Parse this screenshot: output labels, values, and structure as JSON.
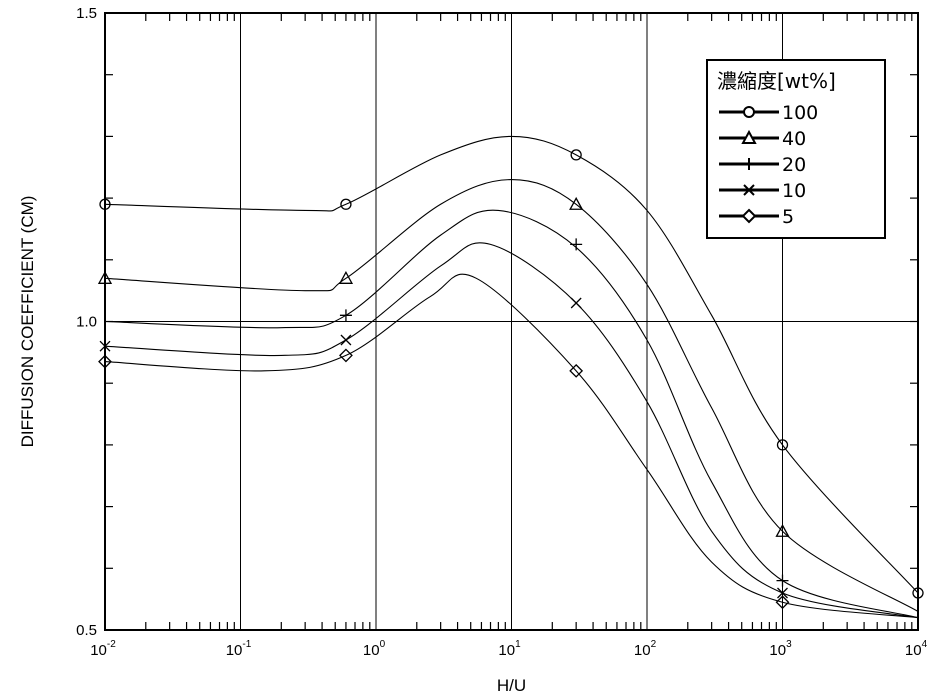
{
  "chart_data": {
    "type": "line",
    "title": "",
    "xlabel": "H/U",
    "ylabel": "DIFFUSION COEFFICIENT (CM)",
    "x_scale": "log",
    "xlim": [
      0.01,
      10000
    ],
    "ylim": [
      0.5,
      1.5
    ],
    "grid": true,
    "legend_position": "top-right",
    "legend_title": "濃縮度[wt%]",
    "x_ticks": [
      {
        "base": "10",
        "exp": "-2",
        "value": 0.01
      },
      {
        "base": "10",
        "exp": "-1",
        "value": 0.1
      },
      {
        "base": "10",
        "exp": "0",
        "value": 1
      },
      {
        "base": "10",
        "exp": "1",
        "value": 10
      },
      {
        "base": "10",
        "exp": "2",
        "value": 100
      },
      {
        "base": "10",
        "exp": "3",
        "value": 1000
      },
      {
        "base": "10",
        "exp": "4",
        "value": 10000
      }
    ],
    "y_ticks": [
      {
        "label": "0.5",
        "value": 0.5
      },
      {
        "label": "1.0",
        "value": 1.0
      },
      {
        "label": "1.5",
        "value": 1.5
      }
    ],
    "series": [
      {
        "name": "100",
        "marker": "circle",
        "x": [
          0.01,
          0.3,
          0.6,
          3,
          10,
          30,
          100,
          300,
          1000,
          10000
        ],
        "y": [
          1.19,
          1.18,
          1.19,
          1.27,
          1.3,
          1.27,
          1.18,
          1.01,
          0.8,
          0.56
        ],
        "markers": [
          {
            "x": 0.01,
            "y": 1.19
          },
          {
            "x": 0.6,
            "y": 1.19
          },
          {
            "x": 30,
            "y": 1.27
          },
          {
            "x": 1000,
            "y": 0.8
          },
          {
            "x": 10000,
            "y": 0.56
          }
        ]
      },
      {
        "name": "40",
        "marker": "triangle",
        "x": [
          0.01,
          0.3,
          0.6,
          3,
          10,
          30,
          100,
          300,
          1000,
          10000
        ],
        "y": [
          1.07,
          1.05,
          1.07,
          1.19,
          1.23,
          1.19,
          1.06,
          0.86,
          0.66,
          0.53
        ],
        "markers": [
          {
            "x": 0.01,
            "y": 1.07
          },
          {
            "x": 0.6,
            "y": 1.07
          },
          {
            "x": 30,
            "y": 1.19
          },
          {
            "x": 1000,
            "y": 0.66
          }
        ]
      },
      {
        "name": "20",
        "marker": "plus",
        "x": [
          0.01,
          0.2,
          0.6,
          3,
          8,
          30,
          100,
          300,
          1000,
          10000
        ],
        "y": [
          1.0,
          0.99,
          1.01,
          1.14,
          1.18,
          1.12,
          0.97,
          0.74,
          0.58,
          0.52
        ],
        "markers": [
          {
            "x": 0.6,
            "y": 1.01
          },
          {
            "x": 30,
            "y": 1.125
          },
          {
            "x": 1000,
            "y": 0.58
          }
        ]
      },
      {
        "name": "10",
        "marker": "cross",
        "x": [
          0.01,
          0.2,
          0.6,
          3,
          7,
          30,
          100,
          300,
          1000,
          10000
        ],
        "y": [
          0.96,
          0.945,
          0.97,
          1.09,
          1.125,
          1.03,
          0.87,
          0.66,
          0.56,
          0.52
        ],
        "markers": [
          {
            "x": 0.01,
            "y": 0.96
          },
          {
            "x": 0.6,
            "y": 0.97
          },
          {
            "x": 30,
            "y": 1.03
          },
          {
            "x": 1000,
            "y": 0.56
          }
        ]
      },
      {
        "name": "5",
        "marker": "diamond",
        "x": [
          0.01,
          0.15,
          0.6,
          2.5,
          5.5,
          30,
          100,
          300,
          1000,
          10000
        ],
        "y": [
          0.935,
          0.92,
          0.945,
          1.04,
          1.07,
          0.92,
          0.76,
          0.61,
          0.545,
          0.52
        ],
        "markers": [
          {
            "x": 0.01,
            "y": 0.935
          },
          {
            "x": 0.6,
            "y": 0.945
          },
          {
            "x": 30,
            "y": 0.92
          },
          {
            "x": 1000,
            "y": 0.545
          }
        ]
      }
    ]
  }
}
